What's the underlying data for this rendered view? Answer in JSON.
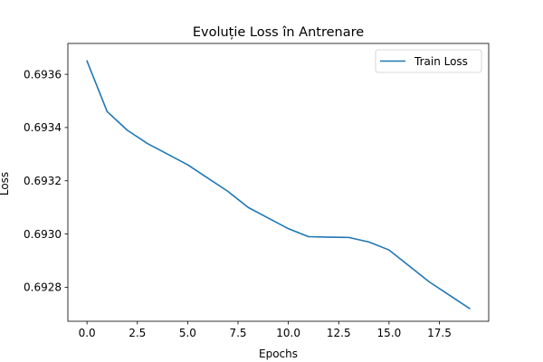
{
  "chart_data": {
    "type": "line",
    "title": "Evoluție Loss în Antrenare",
    "xlabel": "Epochs",
    "ylabel": "Loss",
    "x": [
      0,
      1,
      2,
      3,
      4,
      5,
      6,
      7,
      8,
      9,
      10,
      11,
      12,
      13,
      14,
      15,
      16,
      17,
      18,
      19
    ],
    "series": [
      {
        "name": "Train Loss",
        "color": "#1f77b4",
        "values": [
          0.69365,
          0.69346,
          0.69339,
          0.69334,
          0.6933,
          0.69326,
          0.69321,
          0.69316,
          0.6931,
          0.69306,
          0.69302,
          0.69299,
          0.692988,
          0.692987,
          0.69297,
          0.69294,
          0.69288,
          0.69282,
          0.69277,
          0.69272
        ]
      }
    ],
    "xlim": [
      -0.95,
      19.95
    ],
    "ylim": [
      0.692672,
      0.693716
    ],
    "xticks": [
      0.0,
      2.5,
      5.0,
      7.5,
      10.0,
      12.5,
      15.0,
      17.5
    ],
    "xtick_labels": [
      "0.0",
      "2.5",
      "5.0",
      "7.5",
      "10.0",
      "12.5",
      "15.0",
      "17.5"
    ],
    "yticks": [
      0.6928,
      0.693,
      0.6932,
      0.6934,
      0.6936
    ],
    "ytick_labels": [
      "0.6928",
      "0.6930",
      "0.6932",
      "0.6934",
      "0.6936"
    ],
    "grid": false,
    "legend_position": "top-right"
  }
}
